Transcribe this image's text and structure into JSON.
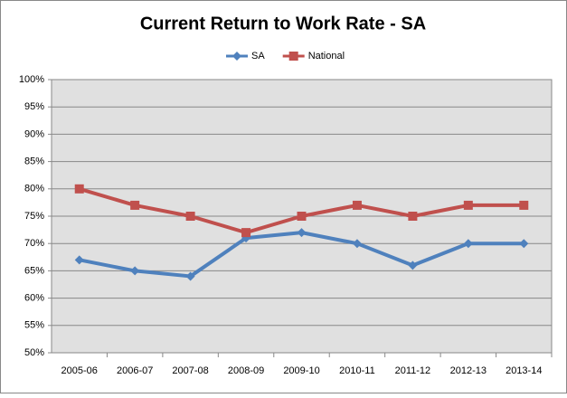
{
  "chart_data": {
    "type": "line",
    "title": "Current Return to Work Rate - SA",
    "categories": [
      "2005-06",
      "2006-07",
      "2007-08",
      "2008-09",
      "2009-10",
      "2010-11",
      "2011-12",
      "2012-13",
      "2013-14"
    ],
    "series": [
      {
        "name": "SA",
        "color": "#4f81bd",
        "marker": "diamond",
        "values": [
          67,
          65,
          64,
          71,
          72,
          70,
          66,
          70,
          70
        ]
      },
      {
        "name": "National",
        "color": "#c0504d",
        "marker": "square",
        "values": [
          80,
          77,
          75,
          72,
          75,
          77,
          75,
          77,
          77
        ]
      }
    ],
    "ylim": [
      50,
      100
    ],
    "yticks": [
      {
        "value": 50,
        "label": "50%"
      },
      {
        "value": 55,
        "label": "55%"
      },
      {
        "value": 60,
        "label": "60%"
      },
      {
        "value": 65,
        "label": "65%"
      },
      {
        "value": 70,
        "label": "70%"
      },
      {
        "value": 75,
        "label": "75%"
      },
      {
        "value": 80,
        "label": "80%"
      },
      {
        "value": 85,
        "label": "85%"
      },
      {
        "value": 90,
        "label": "90%"
      },
      {
        "value": 95,
        "label": "95%"
      },
      {
        "value": 100,
        "label": "100%"
      }
    ],
    "grid": true,
    "legend": "top"
  }
}
